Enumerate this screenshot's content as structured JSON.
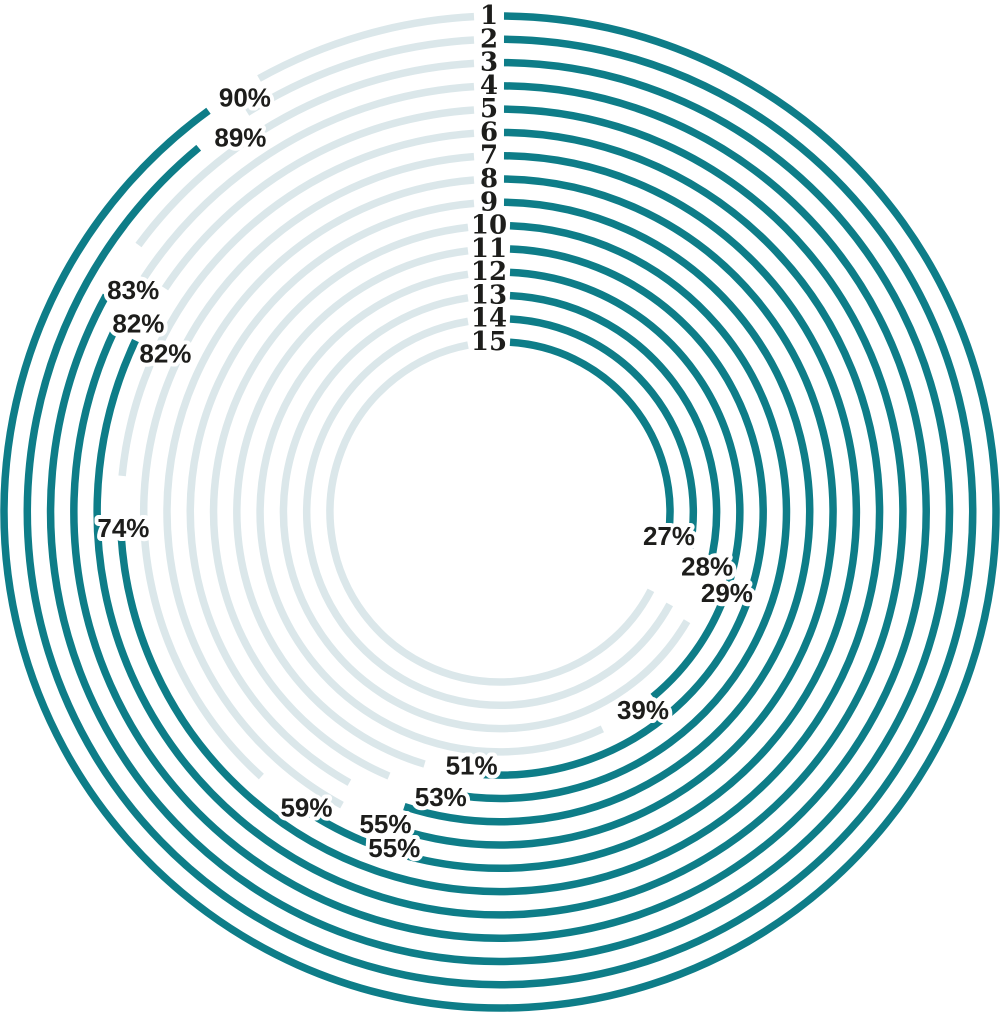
{
  "chart_data": {
    "type": "bar",
    "variant": "radial-progress-rings",
    "description": "15 concentric circular progress rings, outermost ring is category 1, innermost is category 15. Arcs start at 12 o'clock and sweep clockwise by percentage. Remainder of each circle is a light track. Category number labels sit in a gap at the top of each ring; percentage labels sit at the end of each dark arc.",
    "categories": [
      "1",
      "2",
      "3",
      "4",
      "5",
      "6",
      "7",
      "8",
      "9",
      "10",
      "11",
      "12",
      "13",
      "14",
      "15"
    ],
    "values": [
      90,
      89,
      83,
      82,
      82,
      74,
      59,
      55,
      55,
      53,
      51,
      39,
      29,
      28,
      27
    ],
    "value_labels": [
      "90%",
      "89%",
      "83%",
      "82%",
      "82%",
      "74%",
      "59%",
      "55%",
      "55%",
      "53%",
      "51%",
      "39%",
      "29%",
      "28%",
      "27%"
    ],
    "unit": "%",
    "value_range": [
      0,
      100
    ],
    "start_angle_deg": 0,
    "direction": "clockwise",
    "ring_order": "outermost-to-innermost",
    "legend": "none",
    "grid": false,
    "colors": {
      "value_arc": "#0e7d88",
      "track_arc": "#dbe7ea",
      "text": "#1d1d1b",
      "background": "#ffffff"
    }
  }
}
